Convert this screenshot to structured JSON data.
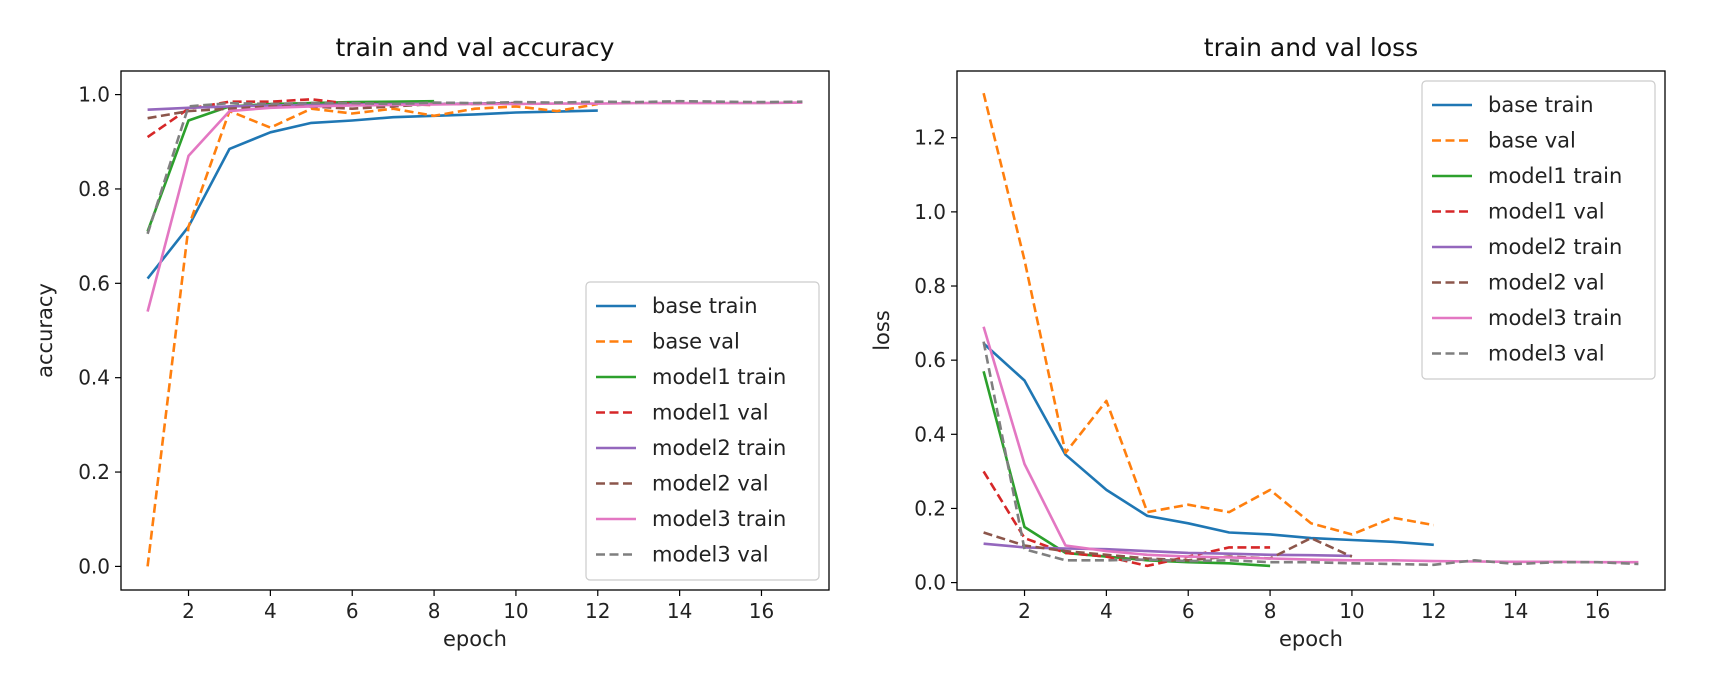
{
  "chart_data": [
    {
      "type": "line",
      "title": "train and val accuracy",
      "xlabel": "epoch",
      "ylabel": "accuracy",
      "xlim": [
        0.35,
        17.65
      ],
      "ylim": [
        -0.05,
        1.05
      ],
      "xticks": [
        2,
        4,
        6,
        8,
        10,
        12,
        14,
        16
      ],
      "yticks": [
        0.0,
        0.2,
        0.4,
        0.6,
        0.8,
        1.0
      ],
      "ytick_labels": [
        "0.0",
        "0.2",
        "0.4",
        "0.6",
        "0.8",
        "1.0"
      ],
      "legend_position": "lower-right",
      "grid": false,
      "series": [
        {
          "name": "base train",
          "color": "#1f77b4",
          "dash": "solid",
          "x": [
            1,
            2,
            3,
            4,
            5,
            6,
            7,
            8,
            9,
            10,
            11,
            12
          ],
          "y": [
            0.61,
            0.72,
            0.885,
            0.92,
            0.94,
            0.945,
            0.952,
            0.955,
            0.958,
            0.962,
            0.964,
            0.966
          ]
        },
        {
          "name": "base val",
          "color": "#ff7f0e",
          "dash": "dashed",
          "x": [
            1,
            2,
            3,
            4,
            5,
            6,
            7,
            8,
            9,
            10,
            11,
            12
          ],
          "y": [
            0.0,
            0.72,
            0.965,
            0.93,
            0.97,
            0.96,
            0.97,
            0.955,
            0.97,
            0.975,
            0.965,
            0.98
          ]
        },
        {
          "name": "model1 train",
          "color": "#2ca02c",
          "dash": "solid",
          "x": [
            1,
            2,
            3,
            4,
            5,
            6,
            7,
            8
          ],
          "y": [
            0.71,
            0.945,
            0.975,
            0.98,
            0.982,
            0.984,
            0.985,
            0.986
          ]
        },
        {
          "name": "model1 val",
          "color": "#d62728",
          "dash": "dashed",
          "x": [
            1,
            2,
            3,
            4,
            5,
            6,
            7,
            8
          ],
          "y": [
            0.91,
            0.97,
            0.985,
            0.985,
            0.99,
            0.98,
            0.98,
            0.978
          ]
        },
        {
          "name": "model2 train",
          "color": "#9467bd",
          "dash": "solid",
          "x": [
            1,
            2,
            3,
            4,
            5,
            6,
            7,
            8,
            9,
            10
          ],
          "y": [
            0.968,
            0.972,
            0.975,
            0.977,
            0.978,
            0.979,
            0.98,
            0.98,
            0.981,
            0.982
          ]
        },
        {
          "name": "model2 val",
          "color": "#8c564b",
          "dash": "dashed",
          "x": [
            1,
            2,
            3,
            4,
            5,
            6,
            7,
            8,
            9,
            10
          ],
          "y": [
            0.95,
            0.965,
            0.97,
            0.975,
            0.975,
            0.97,
            0.975,
            0.98,
            0.98,
            0.982
          ]
        },
        {
          "name": "model3 train",
          "color": "#e377c2",
          "dash": "solid",
          "x": [
            1,
            2,
            3,
            4,
            5,
            6,
            7,
            8,
            9,
            10,
            11,
            12,
            13,
            14,
            15,
            16,
            17
          ],
          "y": [
            0.54,
            0.87,
            0.965,
            0.972,
            0.975,
            0.977,
            0.978,
            0.979,
            0.98,
            0.98,
            0.981,
            0.981,
            0.982,
            0.982,
            0.982,
            0.982,
            0.983
          ]
        },
        {
          "name": "model3 val",
          "color": "#7f7f7f",
          "dash": "dashed",
          "x": [
            1,
            2,
            3,
            4,
            5,
            6,
            7,
            8,
            9,
            10,
            11,
            12,
            13,
            14,
            15,
            16,
            17
          ],
          "y": [
            0.705,
            0.975,
            0.982,
            0.98,
            0.982,
            0.982,
            0.98,
            0.983,
            0.982,
            0.984,
            0.983,
            0.985,
            0.984,
            0.986,
            0.985,
            0.984,
            0.985
          ]
        }
      ]
    },
    {
      "type": "line",
      "title": "train and val loss",
      "xlabel": "epoch",
      "ylabel": "loss",
      "xlim": [
        0.35,
        17.65
      ],
      "ylim": [
        -0.02,
        1.38
      ],
      "xticks": [
        2,
        4,
        6,
        8,
        10,
        12,
        14,
        16
      ],
      "yticks": [
        0.0,
        0.2,
        0.4,
        0.6,
        0.8,
        1.0,
        1.2
      ],
      "ytick_labels": [
        "0.0",
        "0.2",
        "0.4",
        "0.6",
        "0.8",
        "1.0",
        "1.2"
      ],
      "legend_position": "upper-right",
      "grid": false,
      "series": [
        {
          "name": "base train",
          "color": "#1f77b4",
          "dash": "solid",
          "x": [
            1,
            2,
            3,
            4,
            5,
            6,
            7,
            8,
            9,
            10,
            11,
            12
          ],
          "y": [
            0.645,
            0.545,
            0.345,
            0.25,
            0.18,
            0.16,
            0.135,
            0.13,
            0.12,
            0.115,
            0.11,
            0.102
          ]
        },
        {
          "name": "base val",
          "color": "#ff7f0e",
          "dash": "dashed",
          "x": [
            1,
            2,
            3,
            4,
            5,
            6,
            7,
            8,
            9,
            10,
            11,
            12
          ],
          "y": [
            1.32,
            0.87,
            0.35,
            0.49,
            0.19,
            0.21,
            0.19,
            0.25,
            0.16,
            0.13,
            0.175,
            0.155
          ]
        },
        {
          "name": "model1 train",
          "color": "#2ca02c",
          "dash": "solid",
          "x": [
            1,
            2,
            3,
            4,
            5,
            6,
            7,
            8
          ],
          "y": [
            0.57,
            0.15,
            0.08,
            0.07,
            0.06,
            0.055,
            0.052,
            0.045
          ]
        },
        {
          "name": "model1 val",
          "color": "#d62728",
          "dash": "dashed",
          "x": [
            1,
            2,
            3,
            4,
            5,
            6,
            7,
            8
          ],
          "y": [
            0.3,
            0.12,
            0.08,
            0.07,
            0.045,
            0.07,
            0.095,
            0.095
          ]
        },
        {
          "name": "model2 train",
          "color": "#9467bd",
          "dash": "solid",
          "x": [
            1,
            2,
            3,
            4,
            5,
            6,
            7,
            8,
            9,
            10
          ],
          "y": [
            0.105,
            0.095,
            0.092,
            0.09,
            0.085,
            0.08,
            0.078,
            0.075,
            0.074,
            0.072
          ]
        },
        {
          "name": "model2 val",
          "color": "#8c564b",
          "dash": "dashed",
          "x": [
            1,
            2,
            3,
            4,
            5,
            6,
            7,
            8,
            9,
            10
          ],
          "y": [
            0.135,
            0.1,
            0.085,
            0.075,
            0.065,
            0.06,
            0.07,
            0.065,
            0.12,
            0.07
          ]
        },
        {
          "name": "model3 train",
          "color": "#e377c2",
          "dash": "solid",
          "x": [
            1,
            2,
            3,
            4,
            5,
            6,
            7,
            8,
            9,
            10,
            11,
            12,
            13,
            14,
            15,
            16,
            17
          ],
          "y": [
            0.69,
            0.32,
            0.1,
            0.085,
            0.075,
            0.07,
            0.068,
            0.065,
            0.062,
            0.06,
            0.06,
            0.058,
            0.057,
            0.056,
            0.056,
            0.055,
            0.055
          ]
        },
        {
          "name": "model3 val",
          "color": "#7f7f7f",
          "dash": "dashed",
          "x": [
            1,
            2,
            3,
            4,
            5,
            6,
            7,
            8,
            9,
            10,
            11,
            12,
            13,
            14,
            15,
            16,
            17
          ],
          "y": [
            0.65,
            0.09,
            0.06,
            0.06,
            0.062,
            0.058,
            0.06,
            0.055,
            0.055,
            0.052,
            0.05,
            0.048,
            0.06,
            0.05,
            0.055,
            0.055,
            0.05
          ]
        }
      ]
    }
  ]
}
